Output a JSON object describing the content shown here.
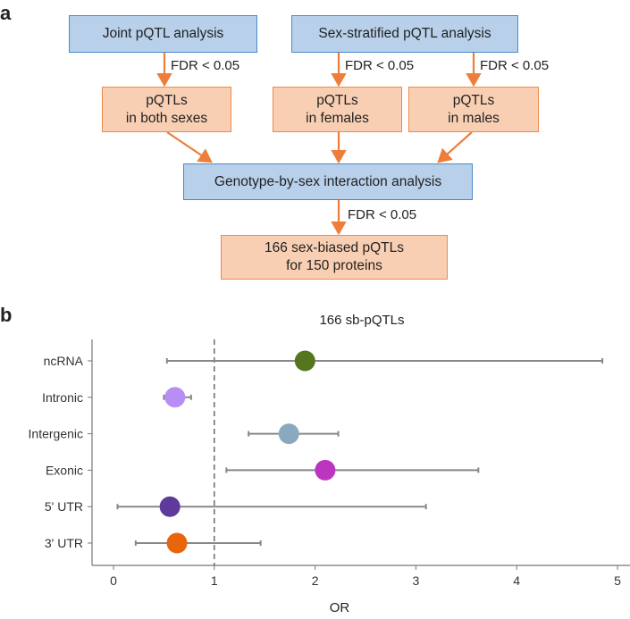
{
  "panel_a": {
    "label": "a",
    "boxes": {
      "joint": "Joint pQTL analysis",
      "stratified": "Sex-stratified pQTL analysis",
      "both": "pQTLs\nin both sexes",
      "females": "pQTLs\nin females",
      "males": "pQTLs\nin males",
      "interaction": "Genotype-by-sex interaction analysis",
      "result": "166 sex-biased pQTLs\nfor 150 proteins"
    },
    "fdr_label": "FDR < 0.05",
    "colors": {
      "blue_fill": "#b8d0ea",
      "orange_fill": "#f9cfb3",
      "arrow": "#ee7d3a"
    }
  },
  "panel_b": {
    "label": "b"
  },
  "chart_data": {
    "type": "scatter",
    "subtype": "forest",
    "title": "166 sb-pQTLs",
    "xlabel": "OR",
    "ylabel": "",
    "xlim": [
      -0.1,
      5.05
    ],
    "xticks": [
      0,
      1,
      2,
      3,
      4,
      5
    ],
    "reference_line": 1,
    "categories": [
      "ncRNA",
      "Intronic",
      "Intergenic",
      "Exonic",
      "5' UTR",
      "3' UTR"
    ],
    "series": [
      {
        "name": "ncRNA",
        "or": 1.9,
        "ci": [
          0.53,
          4.85
        ],
        "color": "#55761f"
      },
      {
        "name": "Intronic",
        "or": 0.61,
        "ci": [
          0.5,
          0.77
        ],
        "color": "#b88ef5"
      },
      {
        "name": "Intergenic",
        "or": 1.74,
        "ci": [
          1.34,
          2.23
        ],
        "color": "#8aa8be"
      },
      {
        "name": "Exonic",
        "or": 2.1,
        "ci": [
          1.12,
          3.62
        ],
        "color": "#bb35c0"
      },
      {
        "name": "5' UTR",
        "or": 0.56,
        "ci": [
          0.04,
          3.1
        ],
        "color": "#5e3a9c"
      },
      {
        "name": "3' UTR",
        "or": 0.63,
        "ci": [
          0.22,
          1.46
        ],
        "color": "#e8650c"
      }
    ]
  }
}
